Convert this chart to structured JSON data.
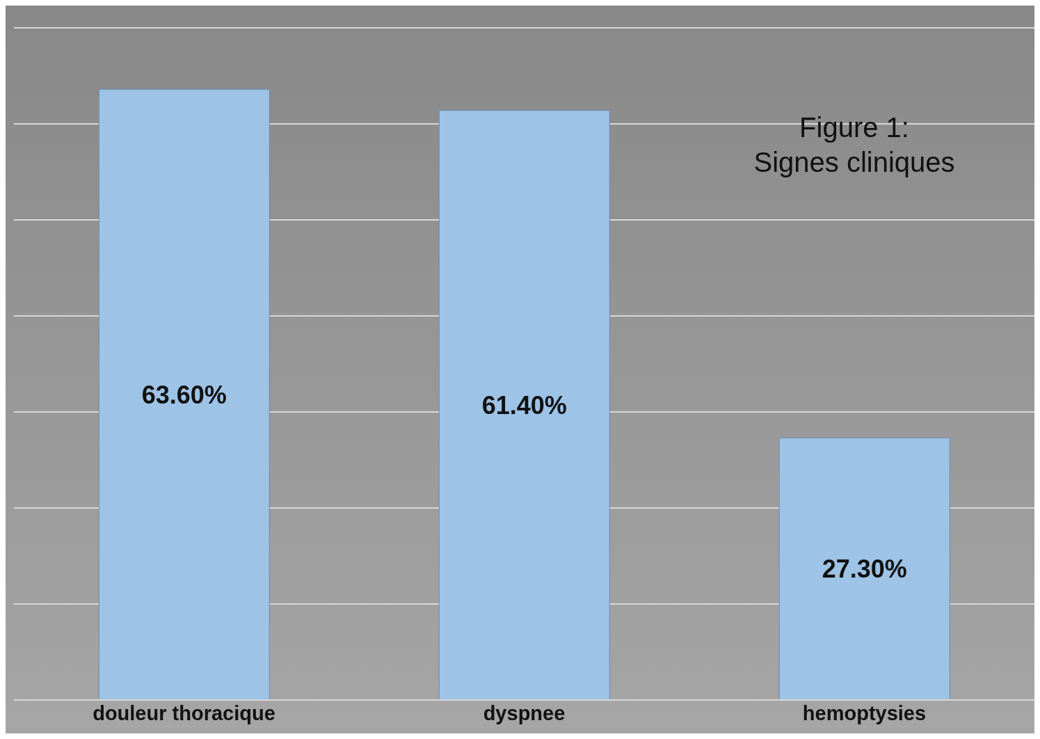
{
  "chart_data": {
    "type": "bar",
    "title": "Figure 1:\nSignes cliniques",
    "categories": [
      "douleur thoracique",
      "dyspnee",
      "hemoptysies"
    ],
    "values": [
      63.6,
      61.4,
      27.3
    ],
    "value_labels": [
      "63.60%",
      "61.40%",
      "27.30%"
    ],
    "color": "#9dc3e6",
    "grid": "y",
    "tick_labels": "x",
    "legend": false
  }
}
